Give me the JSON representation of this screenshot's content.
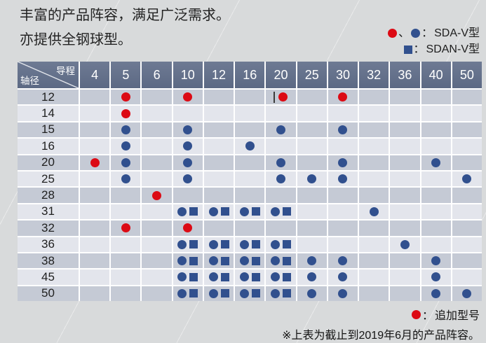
{
  "page": {
    "title_line1": "丰富的产品阵容，满足广泛需求。",
    "title_line2": "亦提供全钢球型。"
  },
  "legend": {
    "sda_v": {
      "separator": "、",
      "colon": "：",
      "label": "SDA-V型"
    },
    "sdan_v": {
      "colon": "：",
      "label": "SDAN-V型"
    }
  },
  "footer": {
    "added_colon": "：",
    "added_label": "追加型号",
    "note": "※上表为截止到2019年6月的产品阵容。"
  },
  "colors": {
    "red": "#dc0a14",
    "blue": "#31508e",
    "header_bg": "#64718b",
    "row_dark": "#c5cad5",
    "row_light": "#e3e5ec",
    "page_bg": "#d8dadb"
  },
  "chart_data": {
    "type": "table",
    "title": "丰富的产品阵容，满足广泛需求。亦提供全钢球型。",
    "corner": {
      "top_right_label": "导程",
      "bottom_left_label": "轴径"
    },
    "columns": [
      "4",
      "5",
      "6",
      "10",
      "12",
      "16",
      "20",
      "25",
      "30",
      "32",
      "36",
      "40",
      "50"
    ],
    "symbol_codes": {
      "R": "red-circle = SDA-V型 (追加型号)",
      "B": "blue-circle = SDA-V型",
      "BS": "blue-circle + blue-square = SDA-V型 与 SDAN-V型"
    },
    "rows": [
      {
        "label": "12",
        "cells": [
          "",
          "R",
          "",
          "R",
          "",
          "",
          "R",
          "",
          "R",
          "",
          "",
          "",
          ""
        ]
      },
      {
        "label": "14",
        "cells": [
          "",
          "R",
          "",
          "",
          "",
          "",
          "",
          "",
          "",
          "",
          "",
          "",
          ""
        ]
      },
      {
        "label": "15",
        "cells": [
          "",
          "B",
          "",
          "B",
          "",
          "",
          "B",
          "",
          "B",
          "",
          "",
          "",
          ""
        ]
      },
      {
        "label": "16",
        "cells": [
          "",
          "B",
          "",
          "B",
          "",
          "B",
          "",
          "",
          "",
          "",
          "",
          "",
          ""
        ]
      },
      {
        "label": "20",
        "cells": [
          "R",
          "B",
          "",
          "B",
          "",
          "",
          "B",
          "",
          "B",
          "",
          "",
          "B",
          ""
        ]
      },
      {
        "label": "25",
        "cells": [
          "",
          "B",
          "",
          "B",
          "",
          "",
          "B",
          "B",
          "B",
          "",
          "",
          "",
          "B"
        ]
      },
      {
        "label": "28",
        "cells": [
          "",
          "",
          "R",
          "",
          "",
          "",
          "",
          "",
          "",
          "",
          "",
          "",
          ""
        ]
      },
      {
        "label": "31",
        "cells": [
          "",
          "",
          "",
          "BS",
          "BS",
          "BS",
          "BS",
          "",
          "",
          "B",
          "",
          "",
          ""
        ]
      },
      {
        "label": "32",
        "cells": [
          "",
          "R",
          "",
          "R",
          "",
          "",
          "",
          "",
          "",
          "",
          "",
          "",
          ""
        ]
      },
      {
        "label": "36",
        "cells": [
          "",
          "",
          "",
          "BS",
          "BS",
          "BS",
          "BS",
          "",
          "",
          "",
          "B",
          "",
          ""
        ]
      },
      {
        "label": "38",
        "cells": [
          "",
          "",
          "",
          "BS",
          "BS",
          "BS",
          "BS",
          "B",
          "B",
          "",
          "",
          "B",
          ""
        ]
      },
      {
        "label": "45",
        "cells": [
          "",
          "",
          "",
          "BS",
          "BS",
          "BS",
          "BS",
          "B",
          "B",
          "",
          "",
          "B",
          ""
        ]
      },
      {
        "label": "50",
        "cells": [
          "",
          "",
          "",
          "BS",
          "BS",
          "BS",
          "BS",
          "B",
          "B",
          "",
          "",
          "B",
          "B"
        ]
      }
    ],
    "legend_entries": [
      {
        "symbols": [
          "red-circle",
          "blue-circle"
        ],
        "label": "SDA-V型"
      },
      {
        "symbols": [
          "blue-square"
        ],
        "label": "SDAN-V型"
      },
      {
        "symbols": [
          "red-circle"
        ],
        "label": "追加型号"
      }
    ],
    "note": "※上表为截止到2019年6月的产品阵容。"
  },
  "artifact": {
    "description": "thin text-cursor line rendered beside the red dot",
    "row_index": 0,
    "col_index": 6
  }
}
